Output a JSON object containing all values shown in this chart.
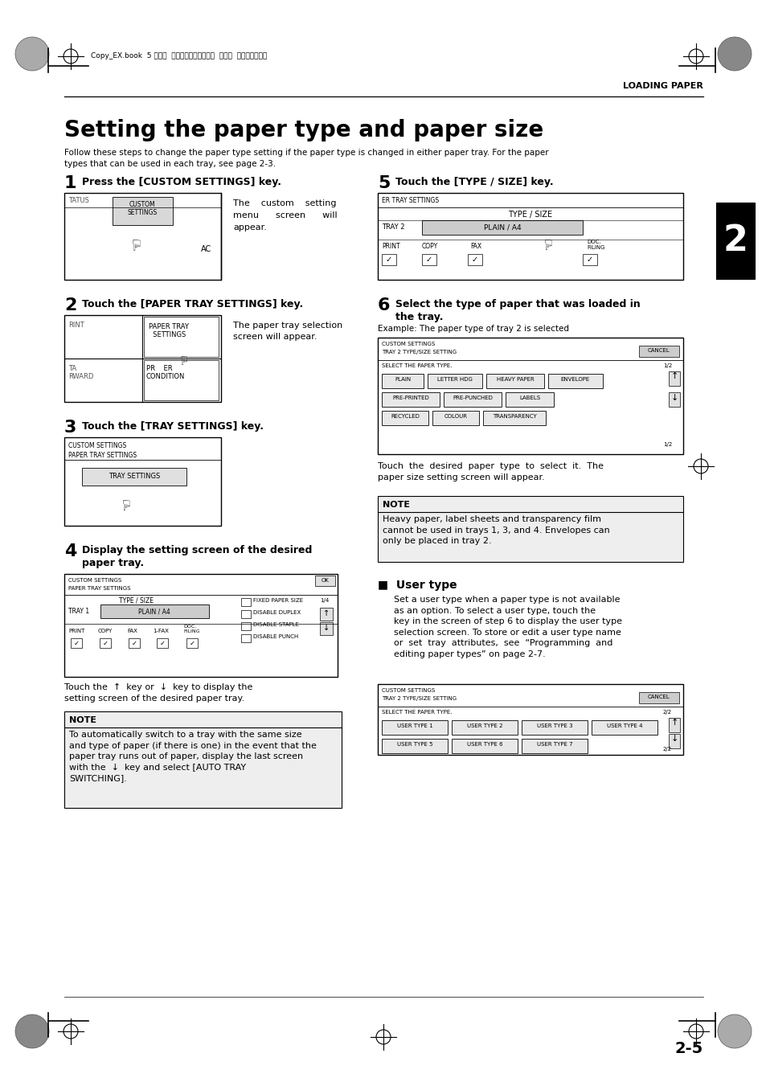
{
  "page_bg": "#ffffff",
  "header_text": "LOADING PAPER",
  "top_meta_text": "Copy_EX.book  5 ページ  ２００４年９月２８日  火曜日  午後９時５４分",
  "title": "Setting the paper type and paper size",
  "subtitle": "Follow these steps to change the paper type setting if the paper type is changed in either paper tray. For the paper\ntypes that can be used in each tray, see page 2-3.",
  "step1_title": "Press the [CUSTOM SETTINGS] key.",
  "step1_desc": "The    custom    setting\nmenu      screen      will\nappear.",
  "step2_title": "Touch the [PAPER TRAY SETTINGS] key.",
  "step2_desc": "The paper tray selection\nscreen will appear.",
  "step3_title": "Touch the [TRAY SETTINGS] key.",
  "step4_title": "Display the setting screen of the desired\npaper tray.",
  "step4_desc": "setting screen of the desired paper tray.",
  "step5_title": "Touch the [TYPE / SIZE] key.",
  "step6_title": "Select the type of paper that was loaded in\nthe tray.",
  "step6_example": "Example: The paper type of tray 2 is selected",
  "step6_desc": "Touch  the  desired  paper  type  to  select  it.  The\npaper size setting screen will appear.",
  "note1_title": "NOTE",
  "note1_text": "To automatically switch to a tray with the same size\nand type of paper (if there is one) in the event that the\npaper tray runs out of paper, display the last screen\nwith the        key and select [AUTO TRAY\nSWITCHING].",
  "note2_title": "NOTE",
  "note2_text": "Heavy paper, label sheets and transparency film\ncannot be used in trays 1, 3, and 4. Envelopes can\nonly be placed in tray 2.",
  "user_type_title": "■  User type",
  "user_type_desc": "Set a user type when a paper type is not available\nas an option. To select a user type, touch the        \nkey in the screen of step 6 to display the user type\nselection screen. To store or edit a user type name\nor  set  tray  attributes,  see  “Programming  and\nediting paper types” on page 2-7.",
  "page_num": "2-5",
  "chapter_num": "2"
}
